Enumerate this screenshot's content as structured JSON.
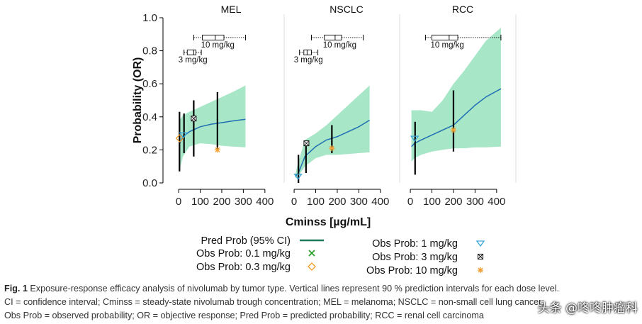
{
  "colors": {
    "band": "#a8e6c8",
    "line": "#1f6fb2",
    "legend_line": "#1a7a5a",
    "ci": "#000000",
    "obs_0_1": "#2ca02c",
    "obs_0_3": "#f0a030",
    "obs_1": "#3aa6d8",
    "obs_3": "#222222",
    "obs_10": "#f0a030"
  },
  "chart_data": {
    "type": "line",
    "title": "Exposure-response efficacy analysis of nivolumab by tumor type",
    "ylabel": "Probability (OR)",
    "xlabel": "Cminss [µg/mL]",
    "ylim": [
      0,
      1
    ],
    "yticks": [
      "0.0",
      "0.2",
      "0.4",
      "0.6",
      "0.8",
      "1.0"
    ],
    "xticks": [
      "0",
      "100",
      "200",
      "300",
      "400"
    ],
    "xlim": [
      -20,
      440
    ],
    "legend": [
      {
        "label": "Pred Prob (95% CI)",
        "symbol": "line"
      },
      {
        "label": "Obs Prob: 0.1 mg/kg",
        "symbol": "x"
      },
      {
        "label": "Obs Prob: 0.3 mg/kg",
        "symbol": "diamond"
      },
      {
        "label": "Obs Prob: 1 mg/kg",
        "symbol": "triangle"
      },
      {
        "label": "Obs Prob: 3 mg/kg",
        "symbol": "boxx"
      },
      {
        "label": "Obs Prob: 10 mg/kg",
        "symbol": "star"
      }
    ],
    "panels": [
      {
        "title": "MEL",
        "pred": {
          "x": [
            5,
            20,
            50,
            100,
            150,
            200,
            250,
            310
          ],
          "y": [
            0.24,
            0.28,
            0.31,
            0.34,
            0.355,
            0.365,
            0.375,
            0.385
          ]
        },
        "band": {
          "x": [
            5,
            20,
            50,
            100,
            150,
            200,
            250,
            310
          ],
          "lower": [
            0.08,
            0.16,
            0.22,
            0.24,
            0.235,
            0.225,
            0.22,
            0.215
          ],
          "upper": [
            0.38,
            0.41,
            0.43,
            0.46,
            0.49,
            0.52,
            0.55,
            0.59
          ]
        },
        "ci": [
          {
            "x": 4,
            "lo": 0.07,
            "hi": 0.43
          },
          {
            "x": 25,
            "lo": 0.18,
            "hi": 0.42
          },
          {
            "x": 70,
            "lo": 0.16,
            "hi": 0.5
          },
          {
            "x": 180,
            "lo": 0.2,
            "hi": 0.55
          }
        ],
        "obs": [
          {
            "x": 5,
            "y": 0.27,
            "dose": "0.3"
          },
          {
            "x": 22,
            "y": 0.29,
            "dose": "1"
          },
          {
            "x": 70,
            "y": 0.39,
            "dose": "3"
          },
          {
            "x": 180,
            "y": 0.2,
            "dose": "10"
          }
        ],
        "boxes": [
          {
            "label": "10 mg/kg",
            "min": 70,
            "q1": 110,
            "med": 170,
            "q3": 210,
            "max": 310,
            "y": 0.88
          },
          {
            "label": "3 mg/kg",
            "min": 25,
            "q1": 40,
            "med": 70,
            "q3": 80,
            "max": 105,
            "y": 0.79
          }
        ]
      },
      {
        "title": "NSCLC",
        "pred": {
          "x": [
            5,
            20,
            50,
            100,
            150,
            200,
            250,
            300,
            350
          ],
          "y": [
            0.04,
            0.06,
            0.16,
            0.22,
            0.26,
            0.28,
            0.31,
            0.34,
            0.38
          ]
        },
        "band": {
          "x": [
            5,
            20,
            50,
            100,
            150,
            200,
            250,
            300,
            350
          ],
          "lower": [
            0.03,
            0.04,
            0.1,
            0.15,
            0.17,
            0.17,
            0.175,
            0.18,
            0.185
          ],
          "upper": [
            0.05,
            0.13,
            0.26,
            0.3,
            0.35,
            0.41,
            0.47,
            0.53,
            0.59
          ]
        },
        "ci": [
          {
            "x": 20,
            "lo": 0.0,
            "hi": 0.17
          },
          {
            "x": 55,
            "lo": 0.06,
            "hi": 0.24
          },
          {
            "x": 175,
            "lo": 0.18,
            "hi": 0.35
          }
        ],
        "obs": [
          {
            "x": 18,
            "y": 0.04,
            "dose": "1"
          },
          {
            "x": 57,
            "y": 0.24,
            "dose": "3"
          },
          {
            "x": 175,
            "y": 0.21,
            "dose": "10"
          }
        ],
        "boxes": [
          {
            "label": "10 mg/kg",
            "min": 80,
            "q1": 140,
            "med": 190,
            "q3": 220,
            "max": 320,
            "y": 0.88
          },
          {
            "label": "3 mg/kg",
            "min": 25,
            "q1": 45,
            "med": 60,
            "q3": 80,
            "max": 110,
            "y": 0.79
          }
        ]
      },
      {
        "title": "RCC",
        "pred": {
          "x": [
            5,
            20,
            50,
            100,
            150,
            200,
            250,
            300,
            350,
            420
          ],
          "y": [
            0.22,
            0.24,
            0.26,
            0.29,
            0.32,
            0.35,
            0.41,
            0.47,
            0.52,
            0.57
          ]
        },
        "band": {
          "x": [
            5,
            20,
            50,
            100,
            150,
            200,
            250,
            300,
            350,
            420
          ],
          "lower": [
            0.13,
            0.15,
            0.17,
            0.19,
            0.2,
            0.21,
            0.21,
            0.215,
            0.215,
            0.22
          ],
          "upper": [
            0.44,
            0.44,
            0.44,
            0.43,
            0.5,
            0.6,
            0.68,
            0.77,
            0.86,
            0.94
          ]
        },
        "ci": [
          {
            "x": 22,
            "lo": 0.05,
            "hi": 0.37
          },
          {
            "x": 200,
            "lo": 0.19,
            "hi": 0.56
          }
        ],
        "obs": [
          {
            "x": 20,
            "y": 0.27,
            "dose": "1"
          },
          {
            "x": 200,
            "y": 0.32,
            "dose": "10"
          }
        ],
        "boxes": [
          {
            "label": "10 mg/kg",
            "min": 70,
            "q1": 100,
            "med": 180,
            "q3": 220,
            "max": 420,
            "y": 0.88
          }
        ]
      }
    ]
  },
  "caption": {
    "fig_label": "Fig. 1",
    "line1": "Exposure-response efficacy analysis of nivolumab by tumor type. Vertical lines represent 90 % prediction intervals for each dose level.",
    "line2": "CI = confidence interval; Cminss = steady-state nivolumab trough concentration; MEL = melanoma; NSCLC = non-small cell lung cancer;",
    "line3": "Obs Prob = observed probability; OR = objective response; Pred Prob = predicted probability; RCC = renal cell carcinoma"
  },
  "watermark": "头条 @咚咚肿瘤科"
}
